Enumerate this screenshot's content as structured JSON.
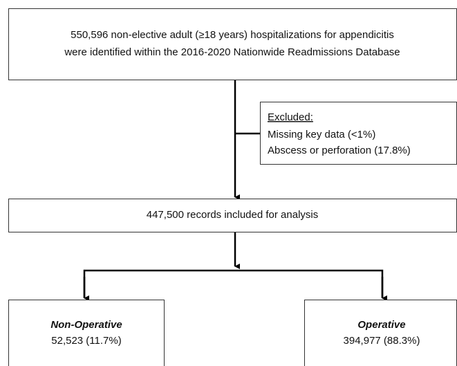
{
  "nodes": [
    {
      "lines": [
        "550,596 non-elective adult (≥18 years) hospitalizations for appendicitis",
        "were identified within the 2016-2020 Nationwide Readmissions Database"
      ]
    },
    {
      "title": "Excluded:",
      "lines": [
        "Missing key data (<1%)",
        "Abscess or perforation (17.8%)"
      ]
    },
    {
      "lines": [
        "447,500 records included for analysis"
      ]
    },
    {
      "title": "Non-Operative",
      "lines": [
        "52,523 (11.7%)"
      ]
    },
    {
      "title": "Operative",
      "lines": [
        "394,977 (88.3%)"
      ]
    }
  ]
}
